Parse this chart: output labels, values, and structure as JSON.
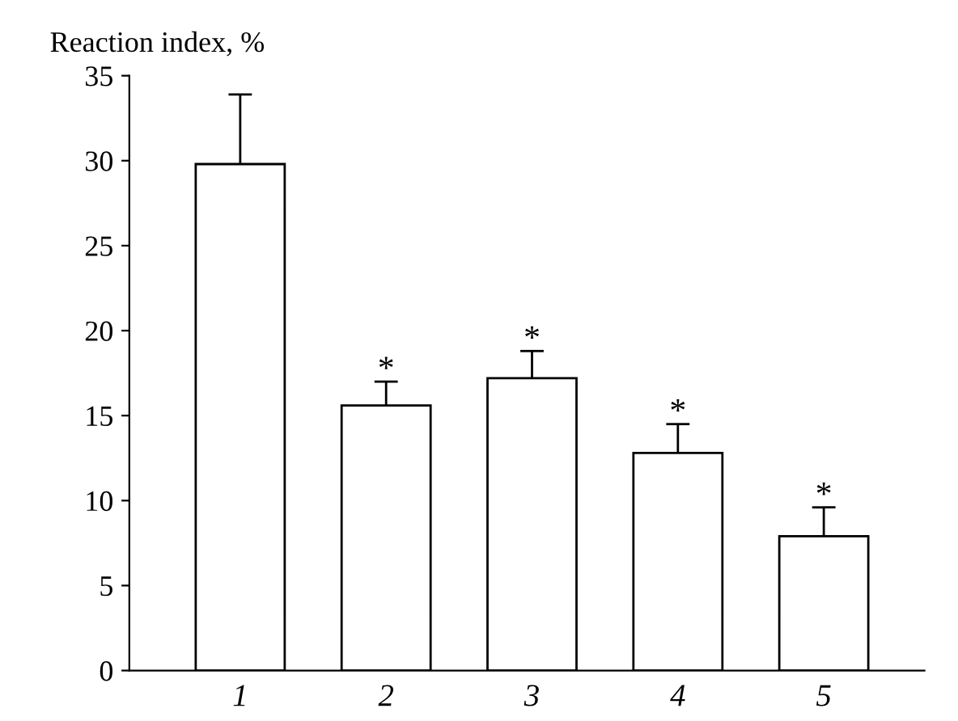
{
  "chart_data": {
    "type": "bar",
    "ylabel": "Reaction index, %",
    "categories": [
      "1",
      "2",
      "3",
      "4",
      "5"
    ],
    "values": [
      29.8,
      15.6,
      17.2,
      12.8,
      7.9
    ],
    "errors": [
      [
        29.8,
        33.9
      ],
      [
        15.6,
        17.0
      ],
      [
        17.2,
        18.8
      ],
      [
        12.8,
        14.5
      ],
      [
        7.9,
        9.6
      ]
    ],
    "color": "#ffffff",
    "annotations": [
      {
        "text": "*",
        "x": "2",
        "y": 17.0
      },
      {
        "text": "*",
        "x": "3",
        "y": 18.8
      },
      {
        "text": "*",
        "x": "4",
        "y": 14.5
      },
      {
        "text": "*",
        "x": "5",
        "y": 9.6
      }
    ],
    "ylim": [
      0,
      35
    ],
    "yticks": [
      0,
      5,
      10,
      15,
      20,
      25,
      30,
      35
    ],
    "grid": false,
    "legend": false
  }
}
